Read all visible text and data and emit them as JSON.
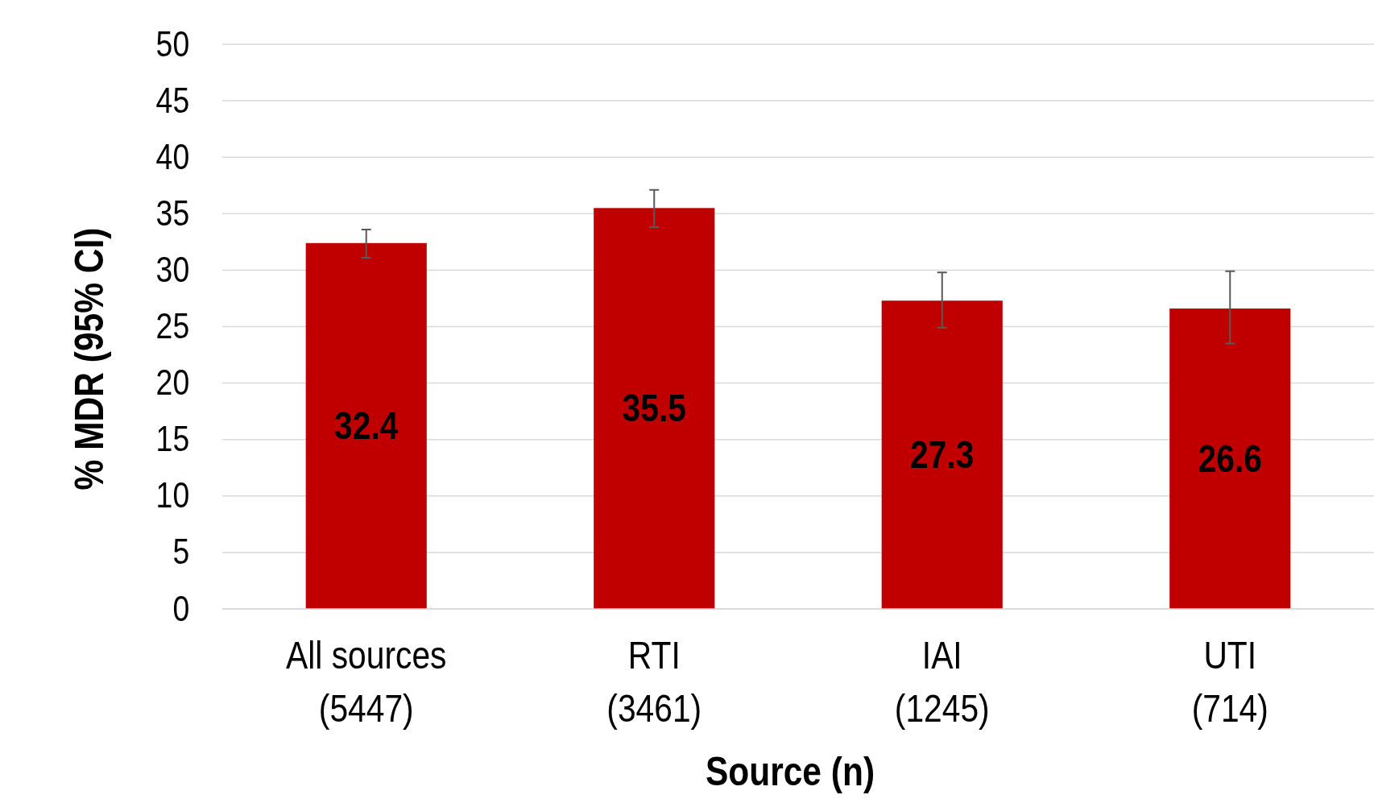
{
  "chart_data": {
    "type": "bar",
    "xlabel": "Source (n)",
    "ylabel": "% MDR (95% CI)",
    "categories": [
      "All sources\n(5447)",
      "RTI\n(3461)",
      "IAI\n(1245)",
      "UTI\n(714)"
    ],
    "values": [
      32.4,
      35.5,
      27.3,
      26.6
    ],
    "color": "#c00000",
    "errors": [
      [
        31.1,
        33.6
      ],
      [
        33.8,
        37.1
      ],
      [
        24.9,
        29.8
      ],
      [
        23.5,
        29.9
      ]
    ],
    "data_labels": true,
    "ylim": [
      0,
      50
    ],
    "yticks": [
      0,
      5,
      10,
      15,
      20,
      25,
      30,
      35,
      40,
      45,
      50
    ],
    "grid": "y"
  }
}
